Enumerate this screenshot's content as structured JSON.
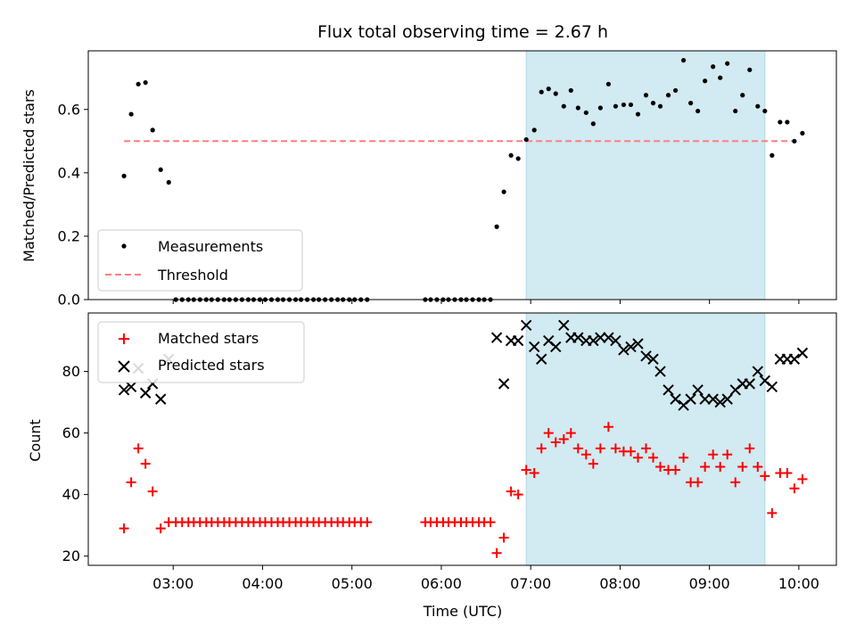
{
  "chart_data": {
    "title": "Flux total observing time = 2.67 h",
    "xlabel": "Time (UTC)",
    "x_ticks": [
      "03:00",
      "04:00",
      "05:00",
      "06:00",
      "07:00",
      "08:00",
      "09:00",
      "10:00"
    ],
    "x_tick_hours": [
      3,
      4,
      5,
      6,
      7,
      8,
      9,
      10
    ],
    "xlim_hours": [
      2.05,
      10.42
    ],
    "highlight_span_hours": [
      6.95,
      9.62
    ],
    "colors": {
      "measurement": "#000000",
      "threshold": "#ff7f7f",
      "matched": "#ff0000",
      "predicted": "#000000",
      "span": "#add8e6"
    },
    "top_panel": {
      "type": "scatter",
      "ylabel": "Matched/Predicted stars",
      "ylim": [
        0,
        0.785
      ],
      "y_ticks": [
        "0.0",
        "0.2",
        "0.4",
        "0.6"
      ],
      "y_tick_values": [
        0,
        0.2,
        0.4,
        0.6
      ],
      "threshold": 0.5,
      "threshold_x": [
        2.45,
        9.95
      ],
      "legend": {
        "placement": "lower-left",
        "entries": [
          "Measurements",
          "Threshold"
        ]
      },
      "series": [
        {
          "name": "Measurements",
          "x": [
            2.45,
            2.53,
            2.61,
            2.69,
            2.77,
            2.86,
            2.95,
            3.03,
            3.1,
            3.17,
            3.23,
            3.3,
            3.37,
            3.43,
            3.5,
            3.57,
            3.63,
            3.7,
            3.77,
            3.84,
            3.9,
            3.97,
            4.03,
            4.1,
            4.17,
            4.23,
            4.3,
            4.37,
            4.43,
            4.5,
            4.57,
            4.63,
            4.7,
            4.77,
            4.84,
            4.9,
            4.97,
            5.03,
            5.1,
            5.17,
            5.82,
            5.88,
            5.95,
            6.02,
            6.08,
            6.15,
            6.22,
            6.28,
            6.35,
            6.42,
            6.48,
            6.55,
            6.62,
            6.7,
            6.78,
            6.86,
            6.95,
            7.04,
            7.12,
            7.2,
            7.28,
            7.37,
            7.45,
            7.53,
            7.62,
            7.7,
            7.78,
            7.87,
            7.95,
            8.04,
            8.12,
            8.2,
            8.29,
            8.37,
            8.45,
            8.54,
            8.62,
            8.71,
            8.79,
            8.87,
            8.95,
            9.04,
            9.12,
            9.2,
            9.29,
            9.37,
            9.45,
            9.54,
            9.62,
            9.7,
            9.79,
            9.87,
            9.95,
            10.04
          ],
          "y": [
            0.39,
            0.585,
            0.68,
            0.685,
            0.535,
            0.41,
            0.37,
            0,
            0,
            0,
            0,
            0,
            0,
            0,
            0,
            0,
            0,
            0,
            0,
            0,
            0,
            0,
            0,
            0,
            0,
            0,
            0,
            0,
            0,
            0,
            0,
            0,
            0,
            0,
            0,
            0,
            0,
            0,
            0,
            0,
            0,
            0,
            0,
            0,
            0,
            0,
            0,
            0,
            0,
            0,
            0,
            0,
            0.23,
            0.34,
            0.455,
            0.445,
            0.505,
            0.535,
            0.655,
            0.665,
            0.65,
            0.61,
            0.66,
            0.605,
            0.59,
            0.555,
            0.605,
            0.68,
            0.61,
            0.615,
            0.615,
            0.585,
            0.645,
            0.62,
            0.61,
            0.645,
            0.66,
            0.755,
            0.62,
            0.595,
            0.69,
            0.735,
            0.7,
            0.745,
            0.595,
            0.645,
            0.725,
            0.61,
            0.595,
            0.455,
            0.56,
            0.56,
            0.5,
            0.525
          ]
        }
      ]
    },
    "bottom_panel": {
      "type": "scatter",
      "ylabel": "Count",
      "ylim": [
        17,
        99
      ],
      "y_ticks": [
        "20",
        "40",
        "60",
        "80"
      ],
      "y_tick_values": [
        20,
        40,
        60,
        80
      ],
      "legend": {
        "placement": "upper-left",
        "entries": [
          "Matched stars",
          "Predicted stars"
        ]
      },
      "series": [
        {
          "name": "Matched stars",
          "x": [
            2.45,
            2.53,
            2.61,
            2.69,
            2.77,
            2.86,
            2.95,
            3.03,
            3.1,
            3.17,
            3.23,
            3.3,
            3.37,
            3.43,
            3.5,
            3.57,
            3.63,
            3.7,
            3.77,
            3.84,
            3.9,
            3.97,
            4.03,
            4.1,
            4.17,
            4.23,
            4.3,
            4.37,
            4.43,
            4.5,
            4.57,
            4.63,
            4.7,
            4.77,
            4.84,
            4.9,
            4.97,
            5.03,
            5.1,
            5.17,
            5.82,
            5.88,
            5.95,
            6.02,
            6.08,
            6.15,
            6.22,
            6.28,
            6.35,
            6.42,
            6.48,
            6.55,
            6.62,
            6.7,
            6.78,
            6.86,
            6.95,
            7.04,
            7.12,
            7.2,
            7.28,
            7.37,
            7.45,
            7.53,
            7.62,
            7.7,
            7.78,
            7.87,
            7.95,
            8.04,
            8.12,
            8.2,
            8.29,
            8.37,
            8.45,
            8.54,
            8.62,
            8.71,
            8.79,
            8.87,
            8.95,
            9.04,
            9.12,
            9.2,
            9.29,
            9.37,
            9.45,
            9.54,
            9.62,
            9.7,
            9.79,
            9.87,
            9.95,
            10.04
          ],
          "y": [
            29,
            44,
            55,
            50,
            41,
            29,
            31,
            31,
            31,
            31,
            31,
            31,
            31,
            31,
            31,
            31,
            31,
            31,
            31,
            31,
            31,
            31,
            31,
            31,
            31,
            31,
            31,
            31,
            31,
            31,
            31,
            31,
            31,
            31,
            31,
            31,
            31,
            31,
            31,
            31,
            31,
            31,
            31,
            31,
            31,
            31,
            31,
            31,
            31,
            31,
            31,
            31,
            21,
            26,
            41,
            40,
            48,
            47,
            55,
            60,
            57,
            58,
            60,
            55,
            53,
            50,
            55,
            62,
            55,
            54,
            54,
            52,
            55,
            52,
            49,
            48,
            48,
            52,
            44,
            44,
            49,
            53,
            49,
            53,
            44,
            49,
            55,
            49,
            46,
            34,
            47,
            47,
            42,
            45
          ]
        },
        {
          "name": "Predicted stars",
          "x": [
            2.45,
            2.53,
            2.61,
            2.69,
            2.77,
            2.86,
            2.95,
            6.62,
            6.7,
            6.78,
            6.86,
            6.95,
            7.04,
            7.12,
            7.2,
            7.28,
            7.37,
            7.45,
            7.53,
            7.62,
            7.7,
            7.78,
            7.87,
            7.95,
            8.04,
            8.12,
            8.2,
            8.29,
            8.37,
            8.45,
            8.54,
            8.62,
            8.71,
            8.79,
            8.87,
            8.95,
            9.04,
            9.12,
            9.2,
            9.29,
            9.37,
            9.45,
            9.54,
            9.62,
            9.7,
            9.79,
            9.87,
            9.95,
            10.04
          ],
          "y": [
            74,
            75,
            81,
            73,
            76,
            71,
            84,
            91,
            76,
            90,
            90,
            95,
            88,
            84,
            90,
            88,
            95,
            91,
            91,
            90,
            90,
            91,
            91,
            90,
            87,
            88,
            89,
            85,
            84,
            80,
            74,
            71,
            69,
            71,
            74,
            71,
            71,
            70,
            71,
            74,
            76,
            76,
            80,
            77,
            75,
            84,
            84,
            84,
            86
          ]
        }
      ]
    }
  }
}
